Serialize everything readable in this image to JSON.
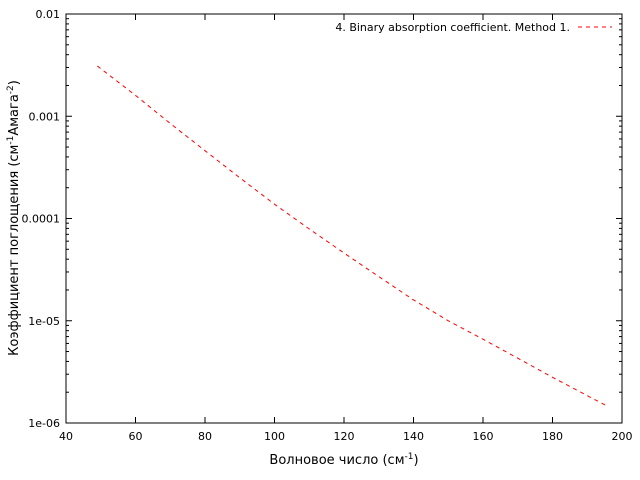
{
  "chart_data": {
    "type": "line",
    "xlabel": {
      "main": "Волновое число (см",
      "sup": "-1",
      "tail": ")"
    },
    "ylabel": {
      "main": "Коэффициент поглощения (см",
      "sup1": "-1",
      "mid": "Амага",
      "sup2": "-2",
      "tail": ")"
    },
    "xlim": [
      40,
      200
    ],
    "ylim": [
      1e-06,
      0.01
    ],
    "yscale": "log",
    "x_ticks": [
      40,
      60,
      80,
      100,
      120,
      140,
      160,
      180,
      200
    ],
    "x_tick_labels": [
      "40",
      "60",
      "80",
      "100",
      "120",
      "140",
      "160",
      "180",
      "200"
    ],
    "y_ticks": [
      1e-06,
      1e-05,
      0.0001,
      0.001,
      0.01
    ],
    "y_tick_labels": [
      "1e-06",
      "1e-05",
      "0.0001",
      "0.001",
      "0.01"
    ],
    "grid": false,
    "legend_position": "top-right",
    "series": [
      {
        "name": "4. Binary absorption coefficient. Method 1.",
        "color": "#ff0000",
        "line_style": "dashed",
        "x": [
          49,
          60,
          70,
          80,
          90,
          100,
          110,
          120,
          130,
          140,
          150,
          160,
          170,
          180,
          190,
          196
        ],
        "y": [
          0.0031,
          0.0016,
          0.00085,
          0.00046,
          0.00025,
          0.000138,
          7.9e-05,
          4.6e-05,
          2.7e-05,
          1.6e-05,
          1e-05,
          6.6e-06,
          4.3e-06,
          2.8e-06,
          1.85e-06,
          1.45e-06
        ]
      }
    ]
  }
}
